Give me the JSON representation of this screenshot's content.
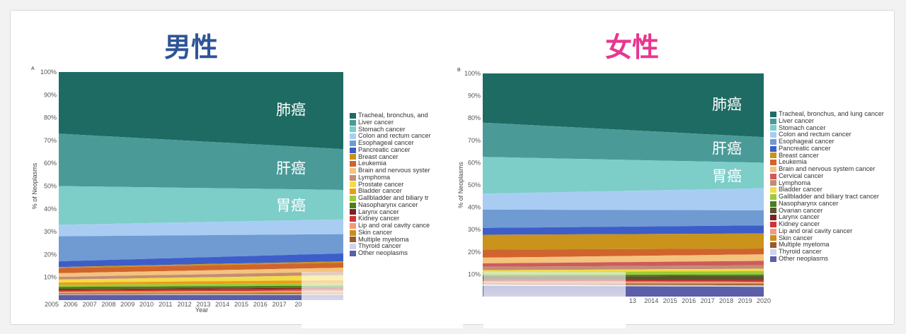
{
  "chart_data": [
    {
      "type": "area",
      "panel_tag": "A",
      "title": "男性",
      "title_color": "#2e5597",
      "xlabel": "Year",
      "ylabel": "% of Neoplasms",
      "ylim": [
        0,
        100
      ],
      "y_ticks": [
        "10%",
        "20%",
        "30%",
        "40%",
        "50%",
        "60%",
        "70%",
        "80%",
        "90%",
        "100%"
      ],
      "x_labels": [
        "2005",
        "2006",
        "2007",
        "2008",
        "2009",
        "2010",
        "2011",
        "2012",
        "2013",
        "2014",
        "2015",
        "2016",
        "2017",
        "20"
      ],
      "x_start": 2005,
      "x_end": 2020,
      "annotations": [
        {
          "text": "肺癌",
          "series": 0
        },
        {
          "text": "肝癌",
          "series": 1
        },
        {
          "text": "胃癌",
          "series": 2
        }
      ],
      "series": [
        {
          "name": "Tracheal, bronchus, and",
          "color": "#1e6b63",
          "v0": 27.0,
          "v1": 34.0
        },
        {
          "name": "Liver cancer",
          "color": "#4a9b98",
          "v0": 23.0,
          "v1": 18.0
        },
        {
          "name": "Stomach cancer",
          "color": "#7dcdc9",
          "v0": 17.0,
          "v1": 13.0
        },
        {
          "name": "Colon and rectum cancer",
          "color": "#a9cdf2",
          "v0": 5.0,
          "v1": 6.5
        },
        {
          "name": "Esophageal cancer",
          "color": "#6f9bd2",
          "v0": 11.0,
          "v1": 8.5
        },
        {
          "name": "Pancreatic cancer",
          "color": "#3d5ec9",
          "v0": 2.5,
          "v1": 3.5
        },
        {
          "name": "Breast cancer",
          "color": "#c9931c",
          "v0": 0.5,
          "v1": 0.6
        },
        {
          "name": "Leukemia",
          "color": "#d0642c",
          "v0": 2.2,
          "v1": 2.2
        },
        {
          "name": "Brain and nervous syster",
          "color": "#f4c37d",
          "v0": 1.6,
          "v1": 1.8
        },
        {
          "name": "Lymphoma",
          "color": "#c48c74",
          "v0": 1.2,
          "v1": 1.5
        },
        {
          "name": "Prostate cancer",
          "color": "#f2dc45",
          "v0": 1.3,
          "v1": 2.2
        },
        {
          "name": "Bladder cancer",
          "color": "#f09a1a",
          "v0": 1.0,
          "v1": 1.3
        },
        {
          "name": "Gallbladder and biliary tr",
          "color": "#9ccb35",
          "v0": 0.9,
          "v1": 1.1
        },
        {
          "name": "Nasopharynx cancer",
          "color": "#4a7d1f",
          "v0": 1.0,
          "v1": 0.9
        },
        {
          "name": "Larynx cancer",
          "color": "#7a2323",
          "v0": 0.5,
          "v1": 0.5
        },
        {
          "name": "Kidney cancer",
          "color": "#d43232",
          "v0": 0.6,
          "v1": 0.8
        },
        {
          "name": "Lip and oral cavity cance",
          "color": "#f29a7a",
          "v0": 0.5,
          "v1": 0.7
        },
        {
          "name": "Skin cancer",
          "color": "#c89018",
          "v0": 0.4,
          "v1": 0.5
        },
        {
          "name": "Multiple myeloma",
          "color": "#9c5a2c",
          "v0": 0.3,
          "v1": 0.4
        },
        {
          "name": "Thyroid cancer",
          "color": "#cfd4ee",
          "v0": 0.3,
          "v1": 0.4
        },
        {
          "name": "Other neoplasms",
          "color": "#5b5ea8",
          "v0": 2.2,
          "v1": 2.2
        }
      ]
    },
    {
      "type": "area",
      "panel_tag": "B",
      "title": "女性",
      "title_color": "#e8378f",
      "xlabel": "",
      "ylabel": "% of Neoplasms",
      "ylim": [
        0,
        100
      ],
      "y_ticks": [
        "10%",
        "20%",
        "30%",
        "40%",
        "50%",
        "60%",
        "70%",
        "80%",
        "90%",
        "100%"
      ],
      "x_labels": [
        "13",
        "2014",
        "2015",
        "2016",
        "2017",
        "2018",
        "2019",
        "2020"
      ],
      "x_start": 2005,
      "x_end": 2020,
      "annotations": [
        {
          "text": "肺癌",
          "series": 0
        },
        {
          "text": "肝癌",
          "series": 1
        },
        {
          "text": "胃癌",
          "series": 2
        }
      ],
      "series": [
        {
          "name": "Tracheal, bronchus, and lung cancer",
          "color": "#1e6b63",
          "v0": 21.5,
          "v1": 27.5
        },
        {
          "name": "Liver cancer",
          "color": "#4a9b98",
          "v0": 15.0,
          "v1": 11.0
        },
        {
          "name": "Stomach cancer",
          "color": "#7dcdc9",
          "v0": 16.0,
          "v1": 11.0
        },
        {
          "name": "Colon and rectum cancer",
          "color": "#a9cdf2",
          "v0": 7.0,
          "v1": 9.5
        },
        {
          "name": "Esophageal cancer",
          "color": "#6f9bd2",
          "v0": 8.0,
          "v1": 6.5
        },
        {
          "name": "Pancreatic cancer",
          "color": "#3d5ec9",
          "v0": 3.0,
          "v1": 3.5
        },
        {
          "name": "Breast cancer",
          "color": "#c9931c",
          "v0": 6.5,
          "v1": 6.5
        },
        {
          "name": "Leukemia",
          "color": "#d0642c",
          "v0": 3.5,
          "v1": 2.5
        },
        {
          "name": "Brain and nervous system cancer",
          "color": "#f4c37d",
          "v0": 2.5,
          "v1": 2.8
        },
        {
          "name": "Cervical cancer",
          "color": "#cc5c5c",
          "v0": 1.5,
          "v1": 1.9
        },
        {
          "name": "Lymphoma",
          "color": "#c48c74",
          "v0": 1.5,
          "v1": 1.5
        },
        {
          "name": "Bladder cancer",
          "color": "#f2dc45",
          "v0": 0.8,
          "v1": 1.0
        },
        {
          "name": "Gallbladder and biliary tract cancer",
          "color": "#9ccb35",
          "v0": 1.3,
          "v1": 1.5
        },
        {
          "name": "Nasopharynx cancer",
          "color": "#4a7d1f",
          "v0": 0.6,
          "v1": 0.6
        },
        {
          "name": "Ovarian cancer",
          "color": "#59542e",
          "v0": 1.5,
          "v1": 1.7
        },
        {
          "name": "Larynx cancer",
          "color": "#7a2323",
          "v0": 0.2,
          "v1": 0.2
        },
        {
          "name": "Kidney cancer",
          "color": "#d43232",
          "v0": 0.5,
          "v1": 0.6
        },
        {
          "name": "Lip and oral cavity cancer",
          "color": "#f29a7a",
          "v0": 0.5,
          "v1": 0.6
        },
        {
          "name": "Skin cancer",
          "color": "#c89018",
          "v0": 0.4,
          "v1": 0.5
        },
        {
          "name": "Multiple myeloma",
          "color": "#9c5a2c",
          "v0": 0.4,
          "v1": 0.5
        },
        {
          "name": "Thyroid cancer",
          "color": "#cfd4ee",
          "v0": 0.6,
          "v1": 0.6
        },
        {
          "name": "Other neoplasms",
          "color": "#5b5ea8",
          "v0": 4.7,
          "v1": 4.2
        }
      ]
    }
  ]
}
